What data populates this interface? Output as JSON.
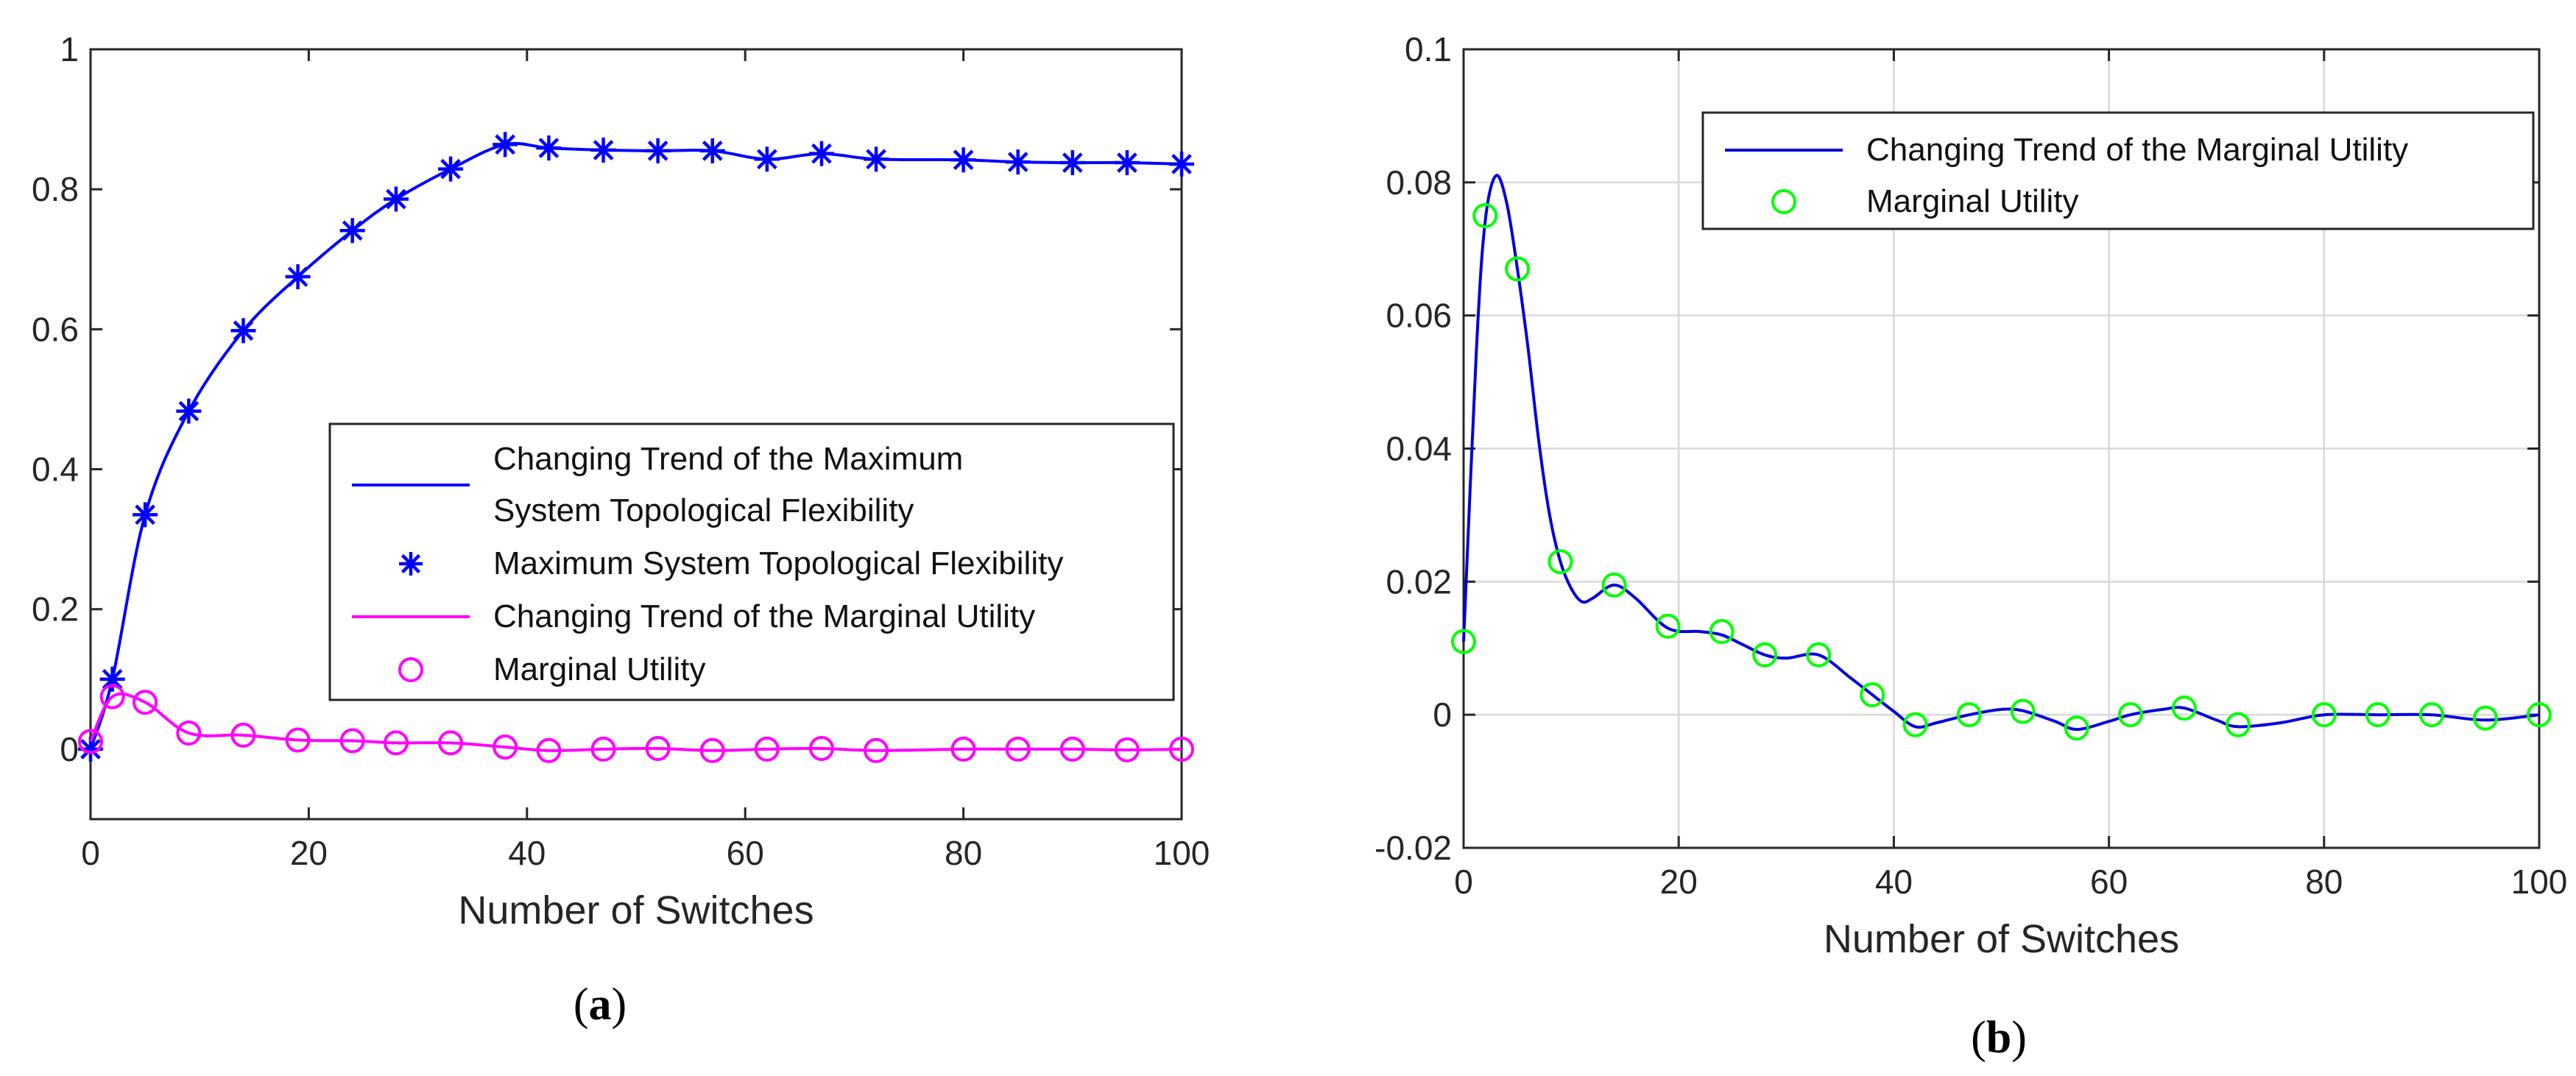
{
  "colors": {
    "flexibility": "#0000ff",
    "marginal_a": "#ff00ff",
    "marginal_b_line": "#0000dd",
    "marginal_b_marker": "#00ff00",
    "grid": "#d9d9d9",
    "axis": "#262626"
  },
  "chart_data": [
    {
      "panel_label": "(a)",
      "panel_letter": "a",
      "type": "line",
      "title": "",
      "xlabel": "Number of Switches",
      "ylabel": "",
      "xlim": [
        0,
        100
      ],
      "ylim": [
        -0.1,
        1
      ],
      "xticks": [
        0,
        20,
        40,
        60,
        80,
        100
      ],
      "xtick_labels": [
        "0",
        "20",
        "40",
        "60",
        "80",
        "100"
      ],
      "yticks": [
        0,
        0.2,
        0.4,
        0.6,
        0.8,
        1
      ],
      "ytick_labels": [
        "0",
        "0.2",
        "0.4",
        "0.6",
        "0.8",
        "1"
      ],
      "grid": false,
      "legend_position": "center-right",
      "legend": [
        {
          "lines": [
            "Changing Trend of the Maximum",
            "System Topological Flexibility"
          ],
          "kind": "line",
          "color": "#0000ff"
        },
        {
          "lines": [
            "Maximum System Topological Flexibility"
          ],
          "kind": "asterisk",
          "color": "#0000ff"
        },
        {
          "lines": [
            "Changing Trend of the Marginal Utility"
          ],
          "kind": "line",
          "color": "#ff00ff"
        },
        {
          "lines": [
            "Marginal Utility"
          ],
          "kind": "circle",
          "color": "#ff00ff"
        }
      ],
      "series": [
        {
          "name": "Maximum System Topological Flexibility",
          "color": "#0000ff",
          "marker": "asterisk",
          "x": [
            0,
            2,
            5,
            9,
            14,
            19,
            24,
            28,
            33,
            38,
            42,
            47,
            52,
            57,
            62,
            67,
            72,
            80,
            85,
            90,
            95,
            100
          ],
          "y": [
            0,
            0.1,
            0.335,
            0.483,
            0.598,
            0.675,
            0.741,
            0.786,
            0.829,
            0.864,
            0.859,
            0.856,
            0.855,
            0.855,
            0.843,
            0.851,
            0.843,
            0.842,
            0.839,
            0.838,
            0.838,
            0.836
          ]
        },
        {
          "name": "Marginal Utility",
          "color": "#ff00ff",
          "marker": "circle",
          "x": [
            0,
            2,
            5,
            9,
            14,
            19,
            24,
            28,
            33,
            38,
            42,
            47,
            52,
            57,
            62,
            67,
            72,
            80,
            85,
            90,
            95,
            100
          ],
          "y": [
            0.011,
            0.075,
            0.067,
            0.023,
            0.02,
            0.013,
            0.012,
            0.009,
            0.009,
            0.003,
            -0.002,
            0,
            0.001,
            -0.002,
            0,
            0.001,
            -0.002,
            0,
            0,
            0,
            -0.001,
            0
          ]
        }
      ]
    },
    {
      "panel_label": "(b)",
      "panel_letter": "b",
      "type": "line",
      "title": "",
      "xlabel": "Number of Switches",
      "ylabel": "",
      "xlim": [
        0,
        100
      ],
      "ylim": [
        -0.02,
        0.1
      ],
      "xticks": [
        0,
        20,
        40,
        60,
        80,
        100
      ],
      "xtick_labels": [
        "0",
        "20",
        "40",
        "60",
        "80",
        "100"
      ],
      "yticks": [
        -0.02,
        0,
        0.02,
        0.04,
        0.06,
        0.08,
        0.1
      ],
      "ytick_labels": [
        "-0.02",
        "0",
        "0.02",
        "0.04",
        "0.06",
        "0.08",
        "0.1"
      ],
      "grid": true,
      "legend_position": "top-right",
      "legend": [
        {
          "lines": [
            "Changing Trend of the Marginal Utility"
          ],
          "kind": "line",
          "color": "#0000dd"
        },
        {
          "lines": [
            "Marginal Utility"
          ],
          "kind": "circle",
          "color": "#00ff00"
        }
      ],
      "trend": {
        "name": "Changing Trend of the Marginal Utility",
        "color": "#0000dd",
        "x": [
          0,
          1.2,
          2,
          3,
          4,
          5,
          6,
          7,
          8,
          9,
          10,
          11,
          12,
          14,
          16,
          19,
          22,
          24,
          26,
          28,
          30,
          33,
          36,
          38,
          40,
          42,
          44,
          47,
          50,
          52,
          55,
          57,
          60,
          62,
          65,
          67,
          70,
          72,
          76,
          80,
          85,
          90,
          95,
          100
        ],
        "y": [
          0.011,
          0.055,
          0.074,
          0.081,
          0.077,
          0.067,
          0.055,
          0.041,
          0.03,
          0.023,
          0.019,
          0.017,
          0.0175,
          0.0195,
          0.0175,
          0.013,
          0.0125,
          0.012,
          0.0105,
          0.009,
          0.0085,
          0.009,
          0.0055,
          0.003,
          0.0005,
          -0.0018,
          -0.0012,
          0,
          0.0008,
          0.0006,
          -0.001,
          -0.0022,
          -0.001,
          0,
          0.0008,
          0.001,
          -0.0008,
          -0.0018,
          -0.0012,
          0,
          0,
          0,
          -0.0008,
          0
        ]
      },
      "series": [
        {
          "name": "Marginal Utility",
          "color": "#00ff00",
          "marker": "circle",
          "x": [
            0,
            2,
            5,
            9,
            14,
            19,
            24,
            28,
            33,
            38,
            42,
            47,
            52,
            57,
            62,
            67,
            72,
            80,
            85,
            90,
            95,
            100
          ],
          "y": [
            0.011,
            0.075,
            0.067,
            0.023,
            0.0195,
            0.0133,
            0.0125,
            0.009,
            0.009,
            0.003,
            -0.0015,
            0,
            0.0005,
            -0.002,
            0,
            0.001,
            -0.0015,
            0,
            0,
            0,
            -0.0005,
            0
          ]
        }
      ]
    }
  ]
}
